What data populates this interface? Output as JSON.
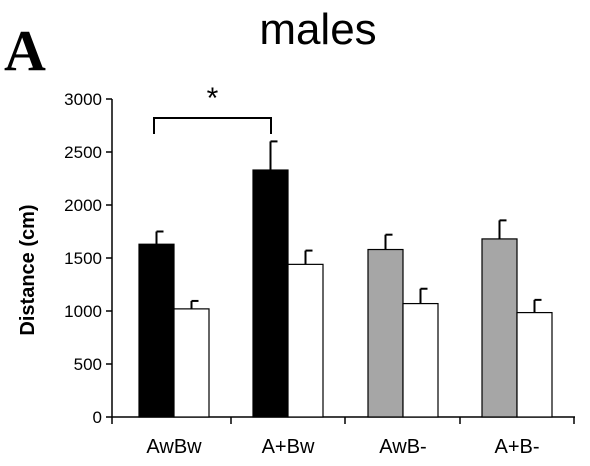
{
  "panel_label": "A",
  "chart_data": {
    "type": "bar",
    "title": "males",
    "xlabel": "",
    "ylabel": "Distance (cm)",
    "ylim": [
      0,
      3000
    ],
    "yticks": [
      0,
      500,
      1000,
      1500,
      2000,
      2500,
      3000
    ],
    "categories": [
      "AwBw",
      "A+Bw",
      "AwB-",
      "A+B-"
    ],
    "first_bar_colors": [
      "#000000",
      "#000000",
      "#a6a6a6",
      "#a6a6a6"
    ],
    "second_bar_color": "#ffffff",
    "series": [
      {
        "values": [
          1630,
          2330,
          1580,
          1680
        ],
        "errors": [
          120,
          270,
          140,
          175
        ]
      },
      {
        "values": [
          1020,
          1440,
          1070,
          985
        ],
        "errors": [
          75,
          130,
          140,
          120
        ]
      }
    ],
    "significance": {
      "from": 0,
      "to": 1,
      "label": "*"
    },
    "grid": false,
    "legend": "none"
  }
}
